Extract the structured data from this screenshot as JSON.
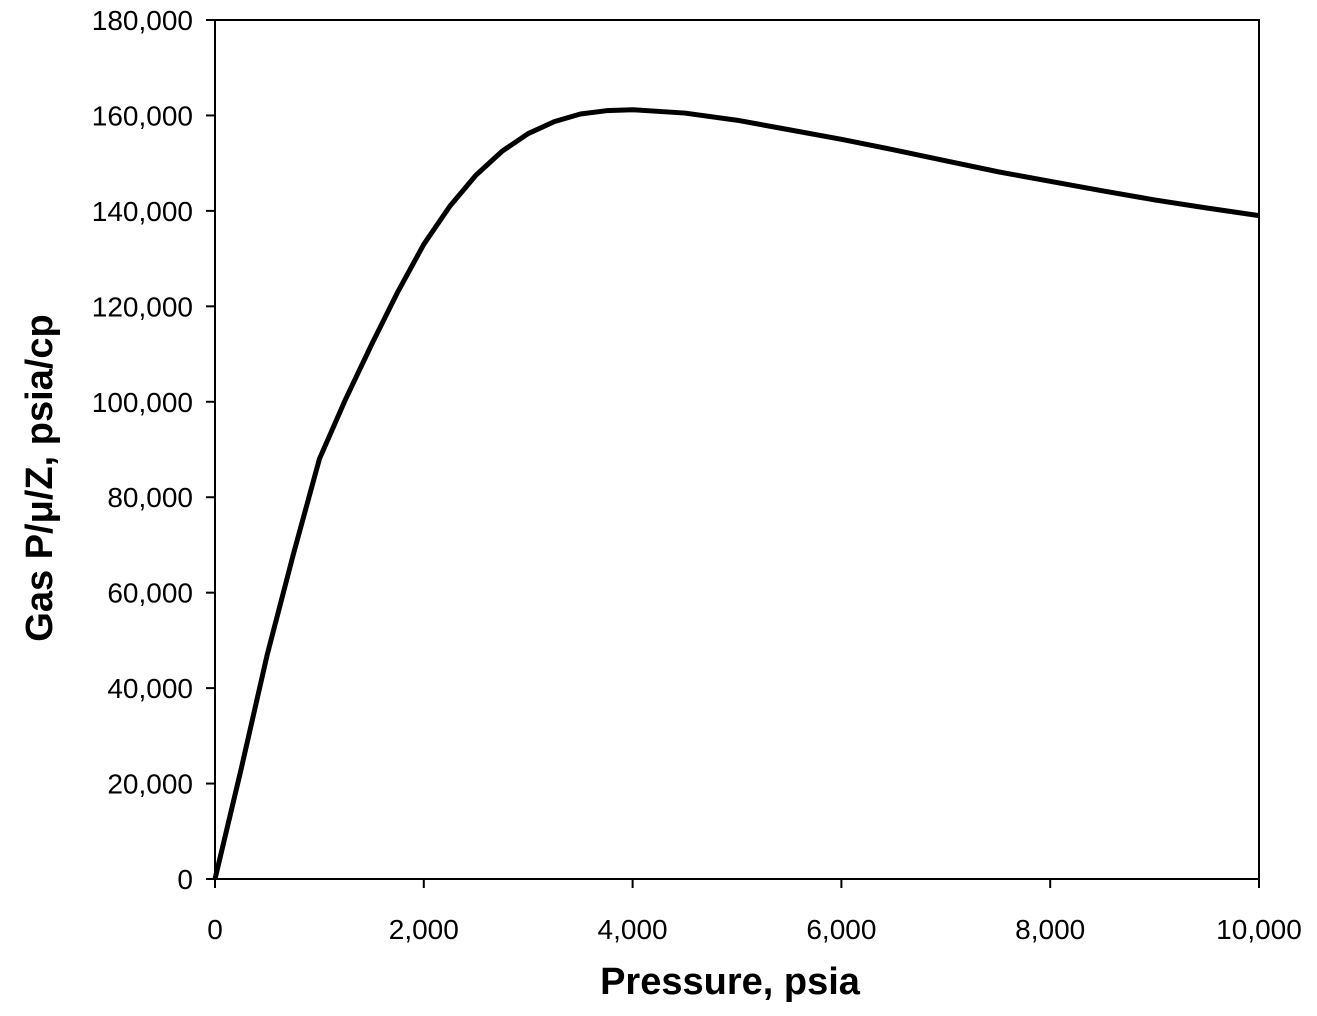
{
  "chart_data": {
    "type": "line",
    "x_label": "Pressure, psia",
    "y_label": "Gas P/μ/Z, psia/cp",
    "x": [
      0,
      250,
      500,
      750,
      1000,
      1250,
      1500,
      1750,
      2000,
      2250,
      2500,
      2750,
      3000,
      3250,
      3500,
      3750,
      4000,
      4500,
      5000,
      5500,
      6000,
      6500,
      7000,
      7500,
      8000,
      8500,
      9000,
      9500,
      10000
    ],
    "series": [
      {
        "color": "#000000",
        "values": [
          0,
          23000,
          47000,
          68000,
          88000,
          100500,
          112000,
          123000,
          133000,
          141000,
          147500,
          152500,
          156200,
          158700,
          160300,
          161000,
          161200,
          160500,
          159000,
          157000,
          155000,
          152800,
          150500,
          148200,
          146200,
          144200,
          142300,
          140600,
          139000
        ]
      }
    ],
    "xlim": [
      0,
      10000
    ],
    "xticks": [
      0,
      {
        "value": 2000,
        "label": "2,000"
      },
      {
        "value": 4000,
        "label": "4,000"
      },
      {
        "value": 6000,
        "label": "6,000"
      },
      {
        "value": 8000,
        "label": "8,000"
      },
      {
        "value": 10000,
        "label": "10,000"
      }
    ],
    "ylim": [
      0,
      180000
    ],
    "yticks": [
      0,
      {
        "value": 20000,
        "label": "20,000"
      },
      {
        "value": 40000,
        "label": "40,000"
      },
      {
        "value": 60000,
        "label": "60,000"
      },
      {
        "value": 80000,
        "label": "80,000"
      },
      {
        "value": 100000,
        "label": "100,000"
      },
      {
        "value": 120000,
        "label": "120,000"
      },
      {
        "value": 140000,
        "label": "140,000"
      },
      {
        "value": 160000,
        "label": "160,000"
      },
      {
        "value": 180000,
        "label": "180,000"
      }
    ],
    "grid": false
  }
}
